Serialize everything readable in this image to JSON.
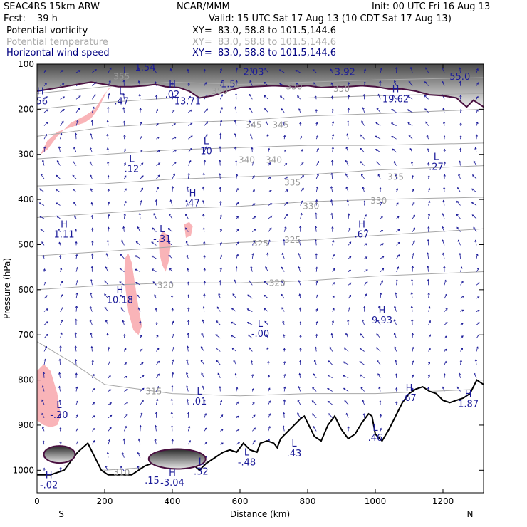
{
  "header": {
    "model": "SEAC4RS 15km ARW",
    "org": "NCAR/MMM",
    "init": "Init: 00 UTC Fri 16 Aug 13",
    "fcst_label": "Fcst:",
    "fcst_value": "39 h",
    "valid": "Valid: 15 UTC Sat 17 Aug 13 (10 CDT Sat 17 Aug 13)",
    "field1": "Potential vorticity",
    "field2": "Potential temperature",
    "field3": "Horizontal wind speed",
    "xy1": "XY=  83.0, 58.8 to 101.5,144.6",
    "xy2": "XY=  83.0, 58.8 to 101.5,144.6",
    "xy3": "XY=  83.0, 58.8 to 101.5,144.6"
  },
  "colors": {
    "pv_contour": "#4a1040",
    "pv_shade": "#f9b4b8",
    "theta": "#a8a8a8",
    "wind": "#1a1a99",
    "terrain": "#000000"
  },
  "chart_data": {
    "type": "heatmap",
    "title": "",
    "xlabel": "Distance (km)",
    "ylabel": "Pressure (hPa)",
    "xlim": [
      0,
      1320
    ],
    "ylim": [
      1050,
      100
    ],
    "x_ticks": [
      0,
      200,
      400,
      600,
      800,
      1000,
      1200
    ],
    "y_ticks": [
      100,
      200,
      300,
      400,
      500,
      600,
      700,
      800,
      900,
      1000
    ],
    "end_labels": {
      "left": "S",
      "right": "N"
    },
    "theta_contours": [
      {
        "label": "355",
        "points": [
          [
            0,
            165
          ],
          [
            200,
            150
          ],
          [
            400,
            140
          ],
          [
            600,
            145
          ],
          [
            800,
            140
          ],
          [
            1000,
            135
          ],
          [
            1320,
            130
          ]
        ]
      },
      {
        "label": "350",
        "points": [
          [
            0,
            200
          ],
          [
            200,
            185
          ],
          [
            400,
            175
          ],
          [
            600,
            175
          ],
          [
            800,
            175
          ],
          [
            1000,
            170
          ],
          [
            1320,
            165
          ]
        ]
      },
      {
        "label": "345",
        "points": [
          [
            0,
            260
          ],
          [
            200,
            240
          ],
          [
            400,
            230
          ],
          [
            600,
            225
          ],
          [
            800,
            215
          ],
          [
            1000,
            210
          ],
          [
            1320,
            200
          ]
        ]
      },
      {
        "label": "340",
        "points": [
          [
            0,
            310
          ],
          [
            200,
            300
          ],
          [
            400,
            290
          ],
          [
            600,
            285
          ],
          [
            800,
            280
          ],
          [
            1000,
            280
          ],
          [
            1320,
            275
          ]
        ]
      },
      {
        "label": "335",
        "points": [
          [
            0,
            370
          ],
          [
            200,
            365
          ],
          [
            400,
            355
          ],
          [
            600,
            350
          ],
          [
            800,
            345
          ],
          [
            1000,
            335
          ],
          [
            1320,
            325
          ]
        ]
      },
      {
        "label": "330",
        "points": [
          [
            0,
            440
          ],
          [
            200,
            430
          ],
          [
            400,
            420
          ],
          [
            600,
            415
          ],
          [
            800,
            405
          ],
          [
            1000,
            400
          ],
          [
            1320,
            395
          ]
        ]
      },
      {
        "label": "325",
        "points": [
          [
            0,
            525
          ],
          [
            200,
            515
          ],
          [
            400,
            505
          ],
          [
            600,
            495
          ],
          [
            800,
            490
          ],
          [
            1000,
            480
          ],
          [
            1320,
            465
          ]
        ]
      },
      {
        "label": "320",
        "points": [
          [
            0,
            600
          ],
          [
            200,
            590
          ],
          [
            400,
            585
          ],
          [
            600,
            585
          ],
          [
            800,
            580
          ],
          [
            1000,
            570
          ],
          [
            1320,
            560
          ]
        ]
      },
      {
        "label": "315",
        "points": [
          [
            0,
            715
          ],
          [
            100,
            760
          ],
          [
            200,
            810
          ],
          [
            400,
            830
          ],
          [
            600,
            835
          ],
          [
            800,
            830
          ],
          [
            1000,
            830
          ],
          [
            1320,
            820
          ]
        ]
      },
      {
        "label": "310",
        "points": [
          [
            80,
            990
          ],
          [
            200,
            1000
          ],
          [
            400,
            990
          ],
          [
            600,
            975
          ],
          [
            800,
            965
          ],
          [
            1000,
            960
          ],
          [
            1320,
            960
          ]
        ]
      }
    ],
    "theta_label_positions": [
      {
        "label": "355",
        "x": 250,
        "p": 128
      },
      {
        "label": "350",
        "x": 540,
        "p": 160
      },
      {
        "label": "345",
        "x": 640,
        "p": 235
      },
      {
        "label": "345",
        "x": 720,
        "p": 235
      },
      {
        "label": "340",
        "x": 620,
        "p": 312
      },
      {
        "label": "340",
        "x": 700,
        "p": 312
      },
      {
        "label": "335",
        "x": 755,
        "p": 363
      },
      {
        "label": "335",
        "x": 1060,
        "p": 350
      },
      {
        "label": "330",
        "x": 810,
        "p": 415
      },
      {
        "label": "330",
        "x": 1010,
        "p": 403
      },
      {
        "label": "325",
        "x": 660,
        "p": 498
      },
      {
        "label": "325",
        "x": 755,
        "p": 490
      },
      {
        "label": "320",
        "x": 380,
        "p": 590
      },
      {
        "label": "320",
        "x": 710,
        "p": 585
      },
      {
        "label": "315",
        "x": 345,
        "p": 825
      },
      {
        "label": "310",
        "x": 250,
        "p": 1005
      },
      {
        "label": "350",
        "x": 900,
        "p": 155
      },
      {
        "label": "350",
        "x": 760,
        "p": 150
      }
    ],
    "extrema": [
      {
        "type": "L",
        "value": "1.54",
        "x": 320,
        "p": 105
      },
      {
        "type": "",
        "value": "2.03",
        "x": 640,
        "p": 115
      },
      {
        "type": "",
        "value": "3.92",
        "x": 910,
        "p": 115
      },
      {
        "type": "",
        "value": "55.0",
        "x": 1250,
        "p": 125
      },
      {
        "type": "L",
        "value": ".47",
        "x": 250,
        "p": 180
      },
      {
        "type": "H",
        "value": ".56",
        "x": 10,
        "p": 180
      },
      {
        "type": "H",
        "value": ".02",
        "x": 400,
        "p": 165
      },
      {
        "type": "",
        "value": "13.71",
        "x": 445,
        "p": 180
      },
      {
        "type": "",
        "value": "1.5",
        "x": 565,
        "p": 142
      },
      {
        "type": "H",
        "value": "19.62",
        "x": 1060,
        "p": 175
      },
      {
        "type": "L",
        "value": "10",
        "x": 500,
        "p": 290
      },
      {
        "type": "L",
        "value": ".12",
        "x": 280,
        "p": 330
      },
      {
        "type": "L",
        "value": ".27",
        "x": 1180,
        "p": 325
      },
      {
        "type": "H",
        "value": ".47",
        "x": 460,
        "p": 405
      },
      {
        "type": "H",
        "value": "1.11",
        "x": 80,
        "p": 475
      },
      {
        "type": "L",
        "value": "-.31",
        "x": 370,
        "p": 485
      },
      {
        "type": "H",
        "value": ".67",
        "x": 960,
        "p": 475
      },
      {
        "type": "H",
        "value": "10.18",
        "x": 245,
        "p": 620
      },
      {
        "type": "L",
        "value": "-.00",
        "x": 660,
        "p": 695
      },
      {
        "type": "H",
        "value": "9.93",
        "x": 1020,
        "p": 665
      },
      {
        "type": "L",
        "value": ".01",
        "x": 480,
        "p": 845
      },
      {
        "type": "L",
        "value": "-.20",
        "x": 65,
        "p": 875
      },
      {
        "type": "H",
        "value": ".67",
        "x": 1100,
        "p": 837
      },
      {
        "type": "H",
        "value": "1.87",
        "x": 1275,
        "p": 850
      },
      {
        "type": "L",
        "value": ".46",
        "x": 1000,
        "p": 925
      },
      {
        "type": "L",
        "value": ".43",
        "x": 760,
        "p": 960
      },
      {
        "type": "L",
        "value": "-.48",
        "x": 620,
        "p": 980
      },
      {
        "type": "L",
        "value": ".32",
        "x": 485,
        "p": 1000
      },
      {
        "type": "H",
        "value": "-.02",
        "x": 35,
        "p": 1030
      },
      {
        "type": "H",
        "value": "-3.04",
        "x": 400,
        "p": 1025
      },
      {
        "type": "",
        "value": ".15",
        "x": 340,
        "p": 1020
      }
    ],
    "terrain_surface": [
      [
        0,
        1010
      ],
      [
        40,
        1010
      ],
      [
        80,
        1000
      ],
      [
        120,
        960
      ],
      [
        150,
        940
      ],
      [
        170,
        970
      ],
      [
        190,
        1000
      ],
      [
        210,
        1010
      ],
      [
        280,
        1010
      ],
      [
        300,
        1000
      ],
      [
        320,
        990
      ],
      [
        340,
        985
      ],
      [
        380,
        980
      ],
      [
        420,
        975
      ],
      [
        450,
        980
      ],
      [
        480,
        1000
      ],
      [
        500,
        985
      ],
      [
        520,
        975
      ],
      [
        550,
        960
      ],
      [
        570,
        955
      ],
      [
        590,
        960
      ],
      [
        600,
        950
      ],
      [
        610,
        940
      ],
      [
        630,
        955
      ],
      [
        650,
        960
      ],
      [
        660,
        940
      ],
      [
        680,
        935
      ],
      [
        700,
        940
      ],
      [
        710,
        950
      ],
      [
        720,
        930
      ],
      [
        740,
        915
      ],
      [
        760,
        900
      ],
      [
        780,
        885
      ],
      [
        790,
        880
      ],
      [
        800,
        895
      ],
      [
        820,
        925
      ],
      [
        840,
        935
      ],
      [
        860,
        900
      ],
      [
        880,
        880
      ],
      [
        900,
        910
      ],
      [
        920,
        930
      ],
      [
        940,
        920
      ],
      [
        960,
        895
      ],
      [
        980,
        875
      ],
      [
        990,
        880
      ],
      [
        1000,
        920
      ],
      [
        1020,
        935
      ],
      [
        1040,
        910
      ],
      [
        1060,
        880
      ],
      [
        1080,
        850
      ],
      [
        1100,
        830
      ],
      [
        1120,
        820
      ],
      [
        1140,
        815
      ],
      [
        1160,
        825
      ],
      [
        1180,
        830
      ],
      [
        1200,
        845
      ],
      [
        1220,
        850
      ],
      [
        1240,
        845
      ],
      [
        1260,
        840
      ],
      [
        1280,
        830
      ],
      [
        1300,
        800
      ],
      [
        1320,
        810
      ]
    ],
    "tropopause_pv2": [
      [
        0,
        160
      ],
      [
        40,
        155
      ],
      [
        80,
        150
      ],
      [
        120,
        145
      ],
      [
        160,
        140
      ],
      [
        200,
        145
      ],
      [
        240,
        150
      ],
      [
        280,
        150
      ],
      [
        320,
        148
      ],
      [
        350,
        145
      ],
      [
        380,
        150
      ],
      [
        420,
        152
      ],
      [
        450,
        160
      ],
      [
        480,
        175
      ],
      [
        520,
        170
      ],
      [
        560,
        160
      ],
      [
        600,
        152
      ],
      [
        640,
        150
      ],
      [
        700,
        148
      ],
      [
        760,
        150
      ],
      [
        800,
        148
      ],
      [
        840,
        152
      ],
      [
        880,
        150
      ],
      [
        920,
        150
      ],
      [
        960,
        148
      ],
      [
        1000,
        150
      ],
      [
        1040,
        155
      ],
      [
        1080,
        155
      ],
      [
        1120,
        160
      ],
      [
        1160,
        168
      ],
      [
        1200,
        170
      ],
      [
        1240,
        175
      ],
      [
        1270,
        195
      ],
      [
        1290,
        180
      ],
      [
        1320,
        195
      ]
    ],
    "pv_shaded_regions": [
      {
        "points": [
          [
            10,
            300
          ],
          [
            30,
            270
          ],
          [
            60,
            250
          ],
          [
            100,
            240
          ],
          [
            140,
            230
          ],
          [
            160,
            220
          ],
          [
            170,
            210
          ],
          [
            180,
            200
          ],
          [
            190,
            185
          ],
          [
            200,
            170
          ],
          [
            210,
            155
          ],
          [
            220,
            150
          ],
          [
            200,
            165
          ],
          [
            170,
            200
          ],
          [
            140,
            215
          ],
          [
            100,
            230
          ],
          [
            60,
            260
          ],
          [
            30,
            290
          ]
        ]
      },
      {
        "points": [
          [
            260,
            530
          ],
          [
            270,
            520
          ],
          [
            280,
            540
          ],
          [
            290,
            590
          ],
          [
            300,
            640
          ],
          [
            310,
            680
          ],
          [
            300,
            700
          ],
          [
            285,
            690
          ],
          [
            270,
            650
          ],
          [
            262,
            600
          ],
          [
            258,
            560
          ]
        ]
      },
      {
        "points": [
          [
            360,
            490
          ],
          [
            370,
            470
          ],
          [
            390,
            480
          ],
          [
            395,
            500
          ],
          [
            390,
            535
          ],
          [
            380,
            560
          ],
          [
            370,
            545
          ],
          [
            362,
            520
          ]
        ]
      },
      {
        "points": [
          [
            435,
            455
          ],
          [
            450,
            450
          ],
          [
            460,
            460
          ],
          [
            455,
            480
          ],
          [
            440,
            485
          ]
        ]
      },
      {
        "points": [
          [
            0,
            780
          ],
          [
            20,
            765
          ],
          [
            40,
            780
          ],
          [
            60,
            830
          ],
          [
            70,
            880
          ],
          [
            60,
            900
          ],
          [
            40,
            905
          ],
          [
            20,
            900
          ],
          [
            0,
            890
          ]
        ]
      }
    ],
    "wind_field": "dense arrows, mostly northward/upward; meridional cross-section"
  }
}
